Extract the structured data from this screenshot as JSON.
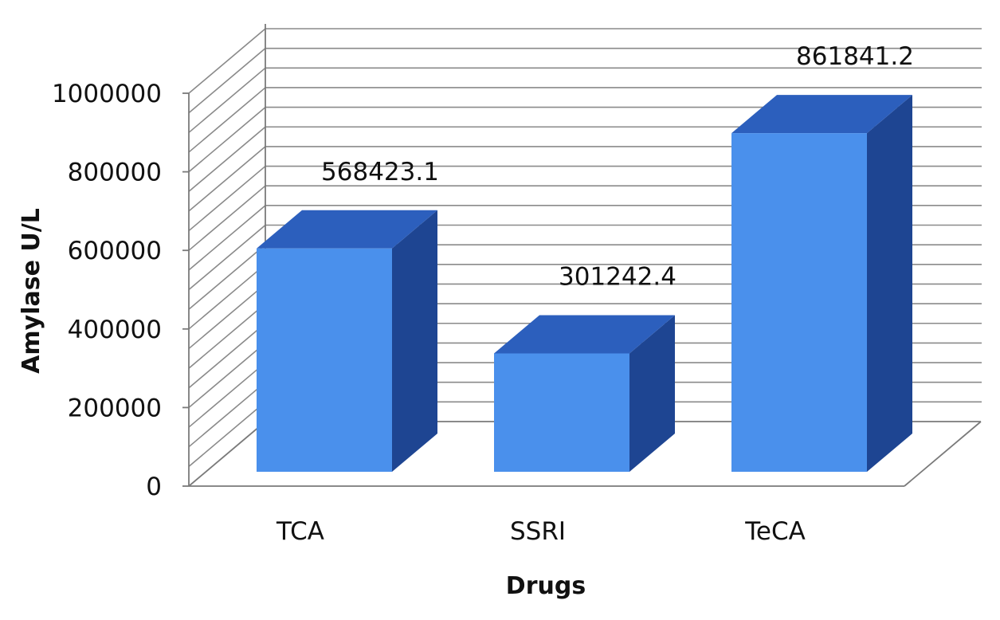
{
  "chart_data": {
    "type": "bar",
    "three_d": true,
    "categories": [
      "TCA",
      "SSRI",
      "TeCA"
    ],
    "values": [
      568423.1,
      301242.4,
      861841.2
    ],
    "data_labels": [
      "568423.1",
      "301242.4",
      "861841.2"
    ],
    "xlabel": "Drugs",
    "ylabel": "Amylase U/L",
    "ylim": [
      0,
      1000000
    ],
    "yticks": [
      "0",
      "200000",
      "400000",
      "600000",
      "800000",
      "1000000"
    ],
    "grid": true,
    "legend": "none",
    "colors": {
      "bar_front": "#4a90ec",
      "bar_top": "#2c5fbd",
      "bar_side": "#1e4592"
    }
  }
}
